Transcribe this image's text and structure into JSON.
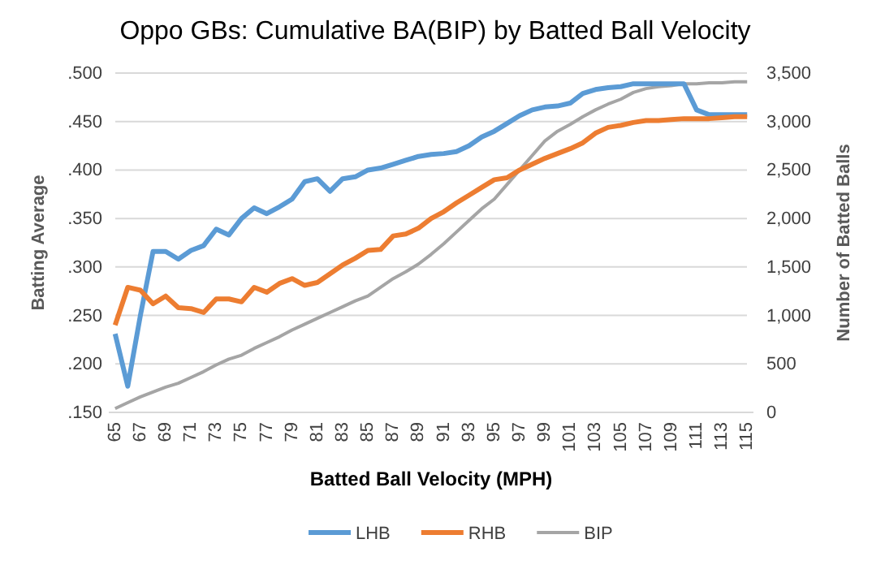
{
  "chart_data": {
    "type": "line",
    "title": "Oppo GBs: Cumulative BA(BIP) by Batted Ball Velocity",
    "xlabel": "Batted Ball Velocity (MPH)",
    "ylabel": "Batting Average",
    "y2label": "Number of Batted Balls",
    "categories": [
      "65",
      null,
      "67",
      null,
      "69",
      null,
      "71",
      null,
      "73",
      null,
      "75",
      null,
      "77",
      null,
      "79",
      null,
      "81",
      null,
      "83",
      null,
      "85",
      null,
      "87",
      null,
      "89",
      null,
      "91",
      null,
      "93",
      null,
      "95",
      null,
      "97",
      null,
      "99",
      null,
      "101",
      null,
      "103",
      null,
      "105",
      null,
      "107",
      null,
      "109",
      null,
      "111",
      null,
      "113",
      null,
      "115"
    ],
    "series": [
      {
        "name": "LHB",
        "color": "#5b9bd5",
        "values": [
          0.231,
          0.177,
          0.25,
          0.316,
          0.316,
          0.308,
          0.317,
          0.322,
          0.339,
          0.333,
          0.35,
          0.361,
          0.355,
          0.362,
          0.37,
          0.388,
          0.391,
          0.378,
          0.391,
          0.393,
          0.4,
          0.402,
          0.406,
          0.41,
          0.414,
          0.416,
          0.417,
          0.419,
          0.425,
          0.434,
          0.44,
          0.448,
          0.456,
          0.462,
          0.465,
          0.466,
          0.469,
          0.479,
          0.483,
          0.485,
          0.486,
          0.489,
          0.489,
          0.489,
          0.489,
          0.489,
          0.462,
          0.457,
          0.457,
          0.457,
          0.457
        ]
      },
      {
        "name": "RHB",
        "color": "#ed7d31",
        "values": [
          0.24,
          0.279,
          0.276,
          0.262,
          0.27,
          0.258,
          0.257,
          0.253,
          0.267,
          0.267,
          0.264,
          0.279,
          0.274,
          0.283,
          0.288,
          0.281,
          0.284,
          0.293,
          0.302,
          0.309,
          0.317,
          0.318,
          0.332,
          0.334,
          0.34,
          0.35,
          0.357,
          0.366,
          0.374,
          0.382,
          0.39,
          0.392,
          0.4,
          0.406,
          0.412,
          0.417,
          0.422,
          0.428,
          0.438,
          0.444,
          0.446,
          0.449,
          0.451,
          0.451,
          0.452,
          0.453,
          0.453,
          0.453,
          0.454,
          0.455,
          0.455
        ]
      },
      {
        "name": "BIP",
        "color": "#a5a5a5",
        "axis": "y2",
        "values": [
          40,
          100,
          160,
          210,
          260,
          300,
          360,
          420,
          490,
          550,
          590,
          660,
          720,
          780,
          850,
          910,
          970,
          1030,
          1090,
          1150,
          1200,
          1290,
          1380,
          1450,
          1530,
          1630,
          1740,
          1860,
          1980,
          2100,
          2200,
          2350,
          2500,
          2650,
          2800,
          2900,
          2970,
          3050,
          3120,
          3180,
          3230,
          3300,
          3340,
          3360,
          3370,
          3390,
          3390,
          3400,
          3400,
          3410,
          3410
        ]
      }
    ],
    "ylim": [
      0.15,
      0.5
    ],
    "yticks": [
      {
        "value": 0.15,
        "label": ".150"
      },
      {
        "value": 0.2,
        "label": ".200"
      },
      {
        "value": 0.25,
        "label": ".250"
      },
      {
        "value": 0.3,
        "label": ".300"
      },
      {
        "value": 0.35,
        "label": ".350"
      },
      {
        "value": 0.4,
        "label": ".400"
      },
      {
        "value": 0.45,
        "label": ".450"
      },
      {
        "value": 0.5,
        "label": ".500"
      }
    ],
    "y2lim": [
      0,
      3500
    ],
    "y2ticks": [
      0,
      500,
      {
        "value": 1000,
        "label": "1,000"
      },
      {
        "value": 1500,
        "label": "1,500"
      },
      {
        "value": 2000,
        "label": "2,000"
      },
      {
        "value": 2500,
        "label": "2,500"
      },
      {
        "value": 3000,
        "label": "3,000"
      },
      {
        "value": 3500,
        "label": "3,500"
      }
    ],
    "grid": "y",
    "legend": "bottom",
    "marker": "none",
    "line_style": "solid"
  }
}
